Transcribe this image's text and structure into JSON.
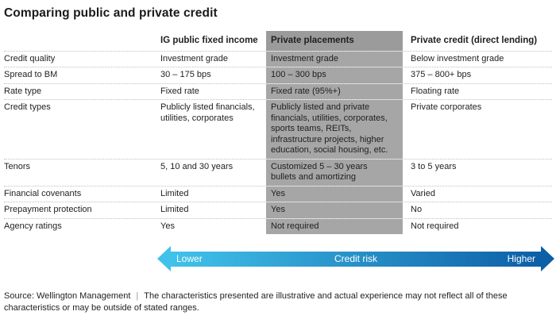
{
  "title": "Comparing public and private credit",
  "table": {
    "columns": [
      "",
      "IG public fixed income",
      "Private placements",
      "Private credit (direct lending)"
    ],
    "rows": [
      {
        "label": "Credit quality",
        "public": "Investment grade",
        "private_placements": "Investment grade",
        "private_credit": "Below investment grade"
      },
      {
        "label": "Spread to BM",
        "public": "30 – 175 bps",
        "private_placements": "100 – 300 bps",
        "private_credit": "375 – 800+ bps"
      },
      {
        "label": "Rate type",
        "public": "Fixed rate",
        "private_placements": "Fixed rate (95%+)",
        "private_credit": "Floating rate"
      },
      {
        "label": "Credit types",
        "public": "Publicly listed financials, utilities, corporates",
        "private_placements": "Publicly listed and private financials, utilities, corporates, sports teams, REITs, infrastructure projects, higher education, social housing, etc.",
        "private_credit": "Private corporates"
      },
      {
        "label": "Tenors",
        "public": "5, 10 and 30 years",
        "private_placements": "Customized 5 – 30 years bullets and amortizing",
        "private_credit": "3 to 5 years"
      },
      {
        "label": "Financial covenants",
        "public": "Limited",
        "private_placements": "Yes",
        "private_credit": "Varied"
      },
      {
        "label": "Prepayment protection",
        "public": "Limited",
        "private_placements": "Yes",
        "private_credit": "No"
      },
      {
        "label": "Agency ratings",
        "public": "Yes",
        "private_placements": "Not required",
        "private_credit": "Not required"
      }
    ]
  },
  "arrow": {
    "left_label": "Lower",
    "center_label": "Credit risk",
    "right_label": "Higher",
    "color_start": "#41c2ea",
    "color_end": "#0d5fa6"
  },
  "footer": {
    "source": "Source: Wellington Management",
    "separator": "|",
    "note": "The characteristics presented are illustrative and actual experience may not reflect all of these characteristics or may be outside of stated ranges."
  },
  "colors": {
    "highlight_column_bg": "#a6a6a6",
    "highlight_header_bg": "#9b9b9b",
    "text": "#1f1f1f"
  }
}
